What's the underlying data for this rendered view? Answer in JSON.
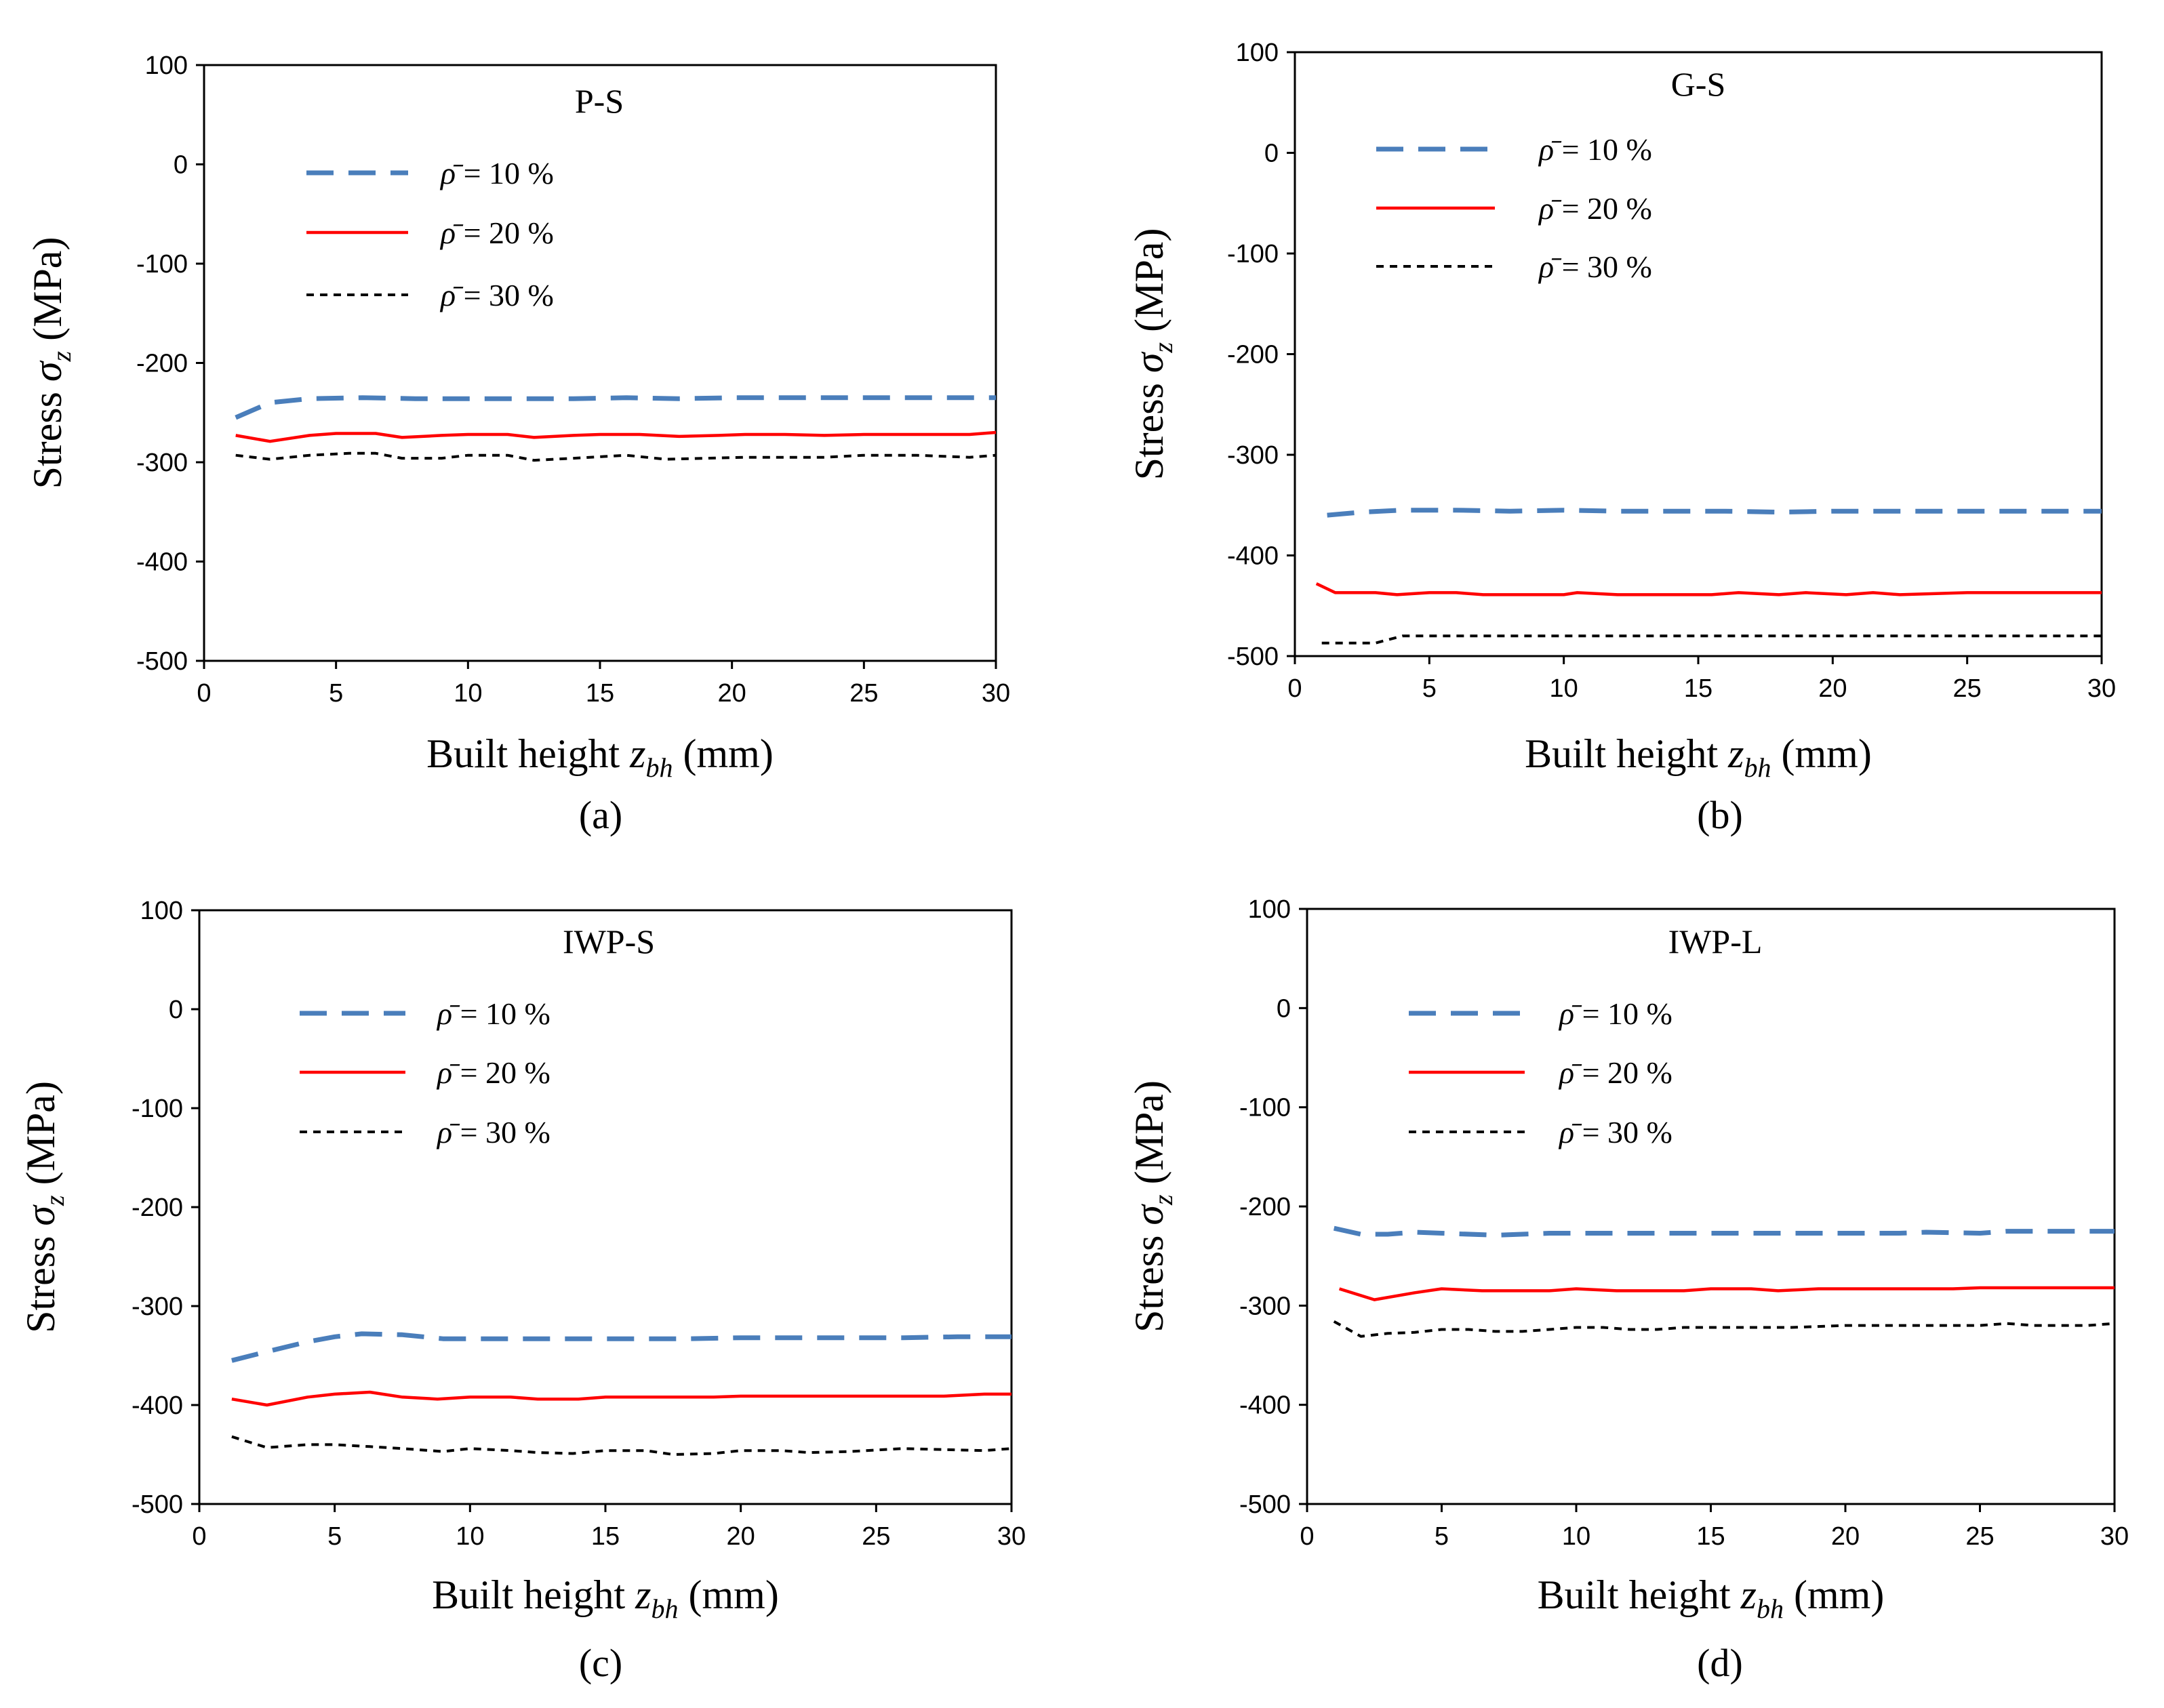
{
  "series_styles": [
    {
      "name": "rho10",
      "color": "#4a7ebb",
      "dash": "40,22",
      "width": 7
    },
    {
      "name": "rho20",
      "color": "#ff0000",
      "dash": "",
      "width": 4.5
    },
    {
      "name": "rho30",
      "color": "#000000",
      "dash": "11,9",
      "width": 4
    }
  ],
  "legend": {
    "symbol": "ρ̄",
    "labels": [
      "= 10 %",
      "= 20 %",
      "= 30 %"
    ]
  },
  "chart_data": [
    {
      "type": "line",
      "panel": "a",
      "title": "P-S",
      "caption": "(a)",
      "ylabel": {
        "prefix": "Stress",
        "symbol": "σ",
        "sub": "z",
        "unit": "(MPa)"
      },
      "xlabel": {
        "prefix": "Built height",
        "symbol": "z",
        "sub": "bh",
        "unit": "(mm)"
      },
      "xlim": [
        0,
        30
      ],
      "ylim": [
        -500,
        100
      ],
      "xticks": [
        0,
        5,
        10,
        15,
        20,
        25,
        30
      ],
      "yticks": [
        100,
        0,
        -100,
        -200,
        -300,
        -400,
        -500
      ],
      "series": [
        {
          "name": "ρ̄ = 10 %",
          "x": [
            1.2,
            2.5,
            4,
            6,
            8,
            10,
            12,
            14,
            16,
            18,
            20,
            22,
            24,
            26,
            28,
            30
          ],
          "y": [
            -255,
            -240,
            -236,
            -235,
            -236,
            -236,
            -236,
            -236,
            -235,
            -236,
            -235,
            -235,
            -235,
            -235,
            -235,
            -235
          ]
        },
        {
          "name": "ρ̄ = 20 %",
          "x": [
            1.2,
            2.5,
            4,
            5,
            6.5,
            7.5,
            9,
            10,
            11.5,
            12.5,
            14,
            15,
            16.5,
            18,
            19.5,
            20.5,
            22,
            23.5,
            25,
            27,
            29,
            30
          ],
          "y": [
            -273,
            -279,
            -273,
            -271,
            -271,
            -275,
            -273,
            -272,
            -272,
            -275,
            -273,
            -272,
            -272,
            -274,
            -273,
            -272,
            -272,
            -273,
            -272,
            -272,
            -272,
            -270
          ]
        },
        {
          "name": "ρ̄ = 30 %",
          "x": [
            1.2,
            2.5,
            4,
            5.5,
            6.5,
            7.5,
            9,
            10,
            11.5,
            12.5,
            14,
            16,
            17.5,
            19,
            20.5,
            22,
            23.5,
            25,
            27,
            29,
            30
          ],
          "y": [
            -293,
            -297,
            -293,
            -291,
            -291,
            -296,
            -296,
            -293,
            -293,
            -298,
            -296,
            -293,
            -297,
            -296,
            -295,
            -295,
            -295,
            -293,
            -293,
            -295,
            -293
          ]
        }
      ]
    },
    {
      "type": "line",
      "panel": "b",
      "title": "G-S",
      "caption": "(b)",
      "ylabel": {
        "prefix": "Stress",
        "symbol": "σ",
        "sub": "z",
        "unit": "(MPa)"
      },
      "xlabel": {
        "prefix": "Built height",
        "symbol": "z",
        "sub": "bh",
        "unit": "(mm)"
      },
      "xlim": [
        0,
        30
      ],
      "ylim": [
        -500,
        100
      ],
      "xticks": [
        0,
        5,
        10,
        15,
        20,
        25,
        30
      ],
      "yticks": [
        100,
        0,
        -100,
        -200,
        -300,
        -400,
        -500
      ],
      "series": [
        {
          "name": "ρ̄ = 10 %",
          "x": [
            1.2,
            2.5,
            4,
            6,
            8,
            10,
            12,
            14,
            16,
            18,
            20,
            22,
            24,
            26,
            28,
            30
          ],
          "y": [
            -360,
            -357,
            -355,
            -355,
            -356,
            -355,
            -356,
            -356,
            -356,
            -357,
            -356,
            -356,
            -356,
            -356,
            -356,
            -356
          ]
        },
        {
          "name": "ρ̄ = 20 %",
          "x": [
            0.8,
            1.5,
            3,
            3.8,
            5,
            6,
            7,
            9,
            10,
            10.5,
            12,
            14,
            15.5,
            16.5,
            18,
            19,
            20.5,
            21.5,
            22.5,
            25,
            28,
            30
          ],
          "y": [
            -428,
            -437,
            -437,
            -439,
            -437,
            -437,
            -439,
            -439,
            -439,
            -437,
            -439,
            -439,
            -439,
            -437,
            -439,
            -437,
            -439,
            -437,
            -439,
            -437,
            -437,
            -437
          ]
        },
        {
          "name": "ρ̄ = 30 %",
          "x": [
            1,
            3,
            4,
            6,
            10,
            15,
            20,
            25,
            30
          ],
          "y": [
            -487,
            -487,
            -480,
            -480,
            -480,
            -480,
            -480,
            -480,
            -480
          ]
        }
      ]
    },
    {
      "type": "line",
      "panel": "c",
      "title": "IWP-S",
      "caption": "(c)",
      "ylabel": {
        "prefix": "Stress",
        "symbol": "σ",
        "sub": "z",
        "unit": "(MPa)"
      },
      "xlabel": {
        "prefix": "Built height",
        "symbol": "z",
        "sub": "bh",
        "unit": "(mm)"
      },
      "xlim": [
        0,
        30
      ],
      "ylim": [
        -500,
        100
      ],
      "xticks": [
        0,
        5,
        10,
        15,
        20,
        25,
        30
      ],
      "yticks": [
        100,
        0,
        -100,
        -200,
        -300,
        -400,
        -500
      ],
      "series": [
        {
          "name": "ρ̄ = 10 %",
          "x": [
            1.2,
            2.5,
            4,
            5,
            6,
            7.5,
            9,
            10,
            12,
            14,
            16,
            18,
            20,
            22,
            24,
            26,
            28,
            30
          ],
          "y": [
            -355,
            -346,
            -336,
            -331,
            -328,
            -329,
            -333,
            -333,
            -333,
            -333,
            -333,
            -333,
            -332,
            -332,
            -332,
            -332,
            -331,
            -331
          ]
        },
        {
          "name": "ρ̄ = 20 %",
          "x": [
            1.2,
            2.5,
            4,
            5,
            6.3,
            7.5,
            8.8,
            10,
            11.5,
            12.5,
            14,
            15,
            17,
            19,
            20,
            22,
            25,
            27.5,
            29,
            30
          ],
          "y": [
            -394,
            -400,
            -392,
            -389,
            -387,
            -392,
            -394,
            -392,
            -392,
            -394,
            -394,
            -392,
            -392,
            -392,
            -391,
            -391,
            -391,
            -391,
            -389,
            -389
          ]
        },
        {
          "name": "ρ̄ = 30 %",
          "x": [
            1.2,
            2.5,
            4,
            5,
            6.3,
            7.5,
            9,
            10,
            11.5,
            12.5,
            13.8,
            15,
            16.5,
            17.5,
            19,
            20,
            21.5,
            22.5,
            24,
            26,
            27.5,
            29,
            30
          ],
          "y": [
            -432,
            -443,
            -440,
            -440,
            -442,
            -444,
            -447,
            -444,
            -446,
            -448,
            -449,
            -446,
            -446,
            -450,
            -449,
            -446,
            -446,
            -448,
            -447,
            -444,
            -445,
            -446,
            -444
          ]
        }
      ]
    },
    {
      "type": "line",
      "panel": "d",
      "title": "IWP-L",
      "caption": "(d)",
      "ylabel": {
        "prefix": "Stress",
        "symbol": "σ",
        "sub": "z",
        "unit": "(MPa)"
      },
      "xlabel": {
        "prefix": "Built height",
        "symbol": "z",
        "sub": "bh",
        "unit": "(mm)"
      },
      "xlim": [
        0,
        30
      ],
      "ylim": [
        -500,
        100
      ],
      "xticks": [
        0,
        5,
        10,
        15,
        20,
        25,
        30
      ],
      "yticks": [
        100,
        0,
        -100,
        -200,
        -300,
        -400,
        -500
      ],
      "series": [
        {
          "name": "ρ̄ = 10 %",
          "x": [
            1,
            2,
            3,
            4,
            5,
            7,
            9,
            10,
            12,
            14,
            16,
            18,
            20,
            22,
            23,
            25,
            26,
            28,
            30
          ],
          "y": [
            -222,
            -228,
            -228,
            -226,
            -227,
            -229,
            -227,
            -227,
            -227,
            -227,
            -227,
            -227,
            -227,
            -227,
            -226,
            -227,
            -225,
            -225,
            -225
          ]
        },
        {
          "name": "ρ̄ = 20 %",
          "x": [
            1.2,
            2.5,
            4,
            5,
            6.5,
            8,
            9,
            10,
            11.5,
            14,
            15,
            16.5,
            17.5,
            19,
            22,
            24,
            25,
            27,
            30
          ],
          "y": [
            -283,
            -294,
            -287,
            -283,
            -285,
            -285,
            -285,
            -283,
            -285,
            -285,
            -283,
            -283,
            -285,
            -283,
            -283,
            -283,
            -282,
            -282,
            -282
          ]
        },
        {
          "name": "ρ̄ = 30 %",
          "x": [
            1,
            2,
            3,
            4,
            5,
            6,
            7,
            8,
            9,
            10,
            11,
            12,
            13,
            14,
            15,
            16,
            17,
            18,
            19,
            20,
            21,
            22,
            23,
            24,
            25,
            26,
            27,
            28,
            29,
            30
          ],
          "y": [
            -316,
            -331,
            -328,
            -327,
            -324,
            -324,
            -326,
            -326,
            -324,
            -322,
            -322,
            -324,
            -324,
            -322,
            -322,
            -322,
            -322,
            -322,
            -321,
            -320,
            -320,
            -320,
            -320,
            -320,
            -320,
            -318,
            -320,
            -320,
            -320,
            -318
          ]
        }
      ]
    }
  ]
}
